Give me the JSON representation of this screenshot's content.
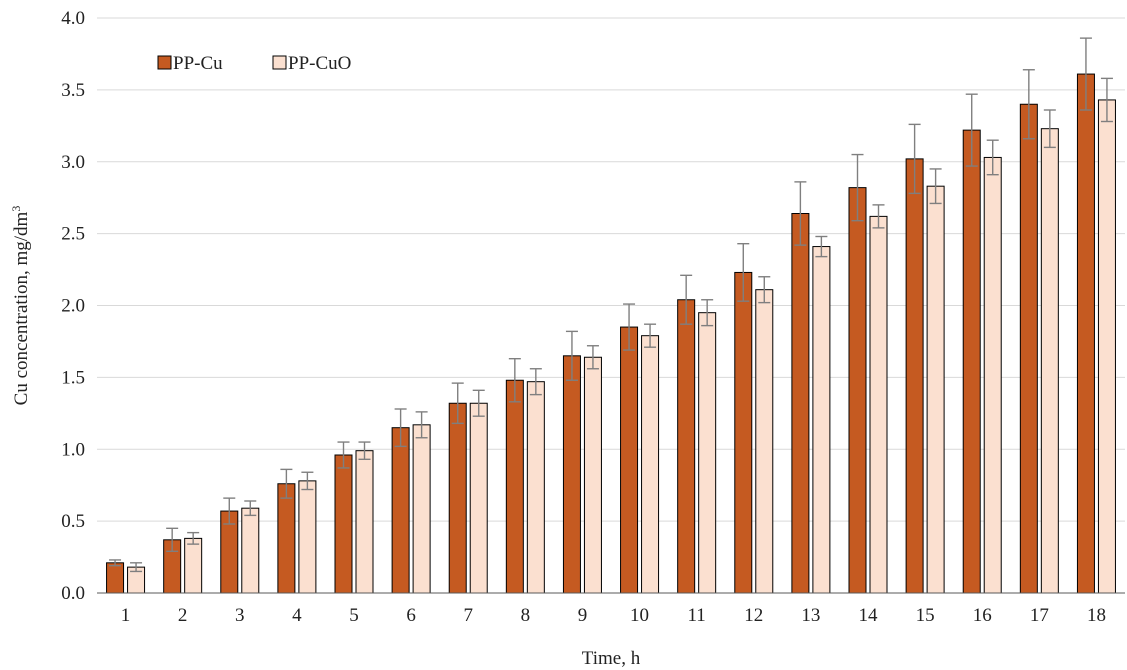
{
  "chart_data": {
    "type": "bar",
    "xlabel": "Time, h",
    "ylabel": "Cu concentration, mg/dm",
    "ylabel_superscript": "3",
    "ylim": [
      0,
      4
    ],
    "yticks": [
      "0.0",
      "0.5",
      "1.0",
      "1.5",
      "2.0",
      "2.5",
      "3.0",
      "3.5",
      "4.0"
    ],
    "ytick_values": [
      0,
      0.5,
      1,
      1.5,
      2,
      2.5,
      3,
      3.5,
      4
    ],
    "grid": true,
    "legend_position": "top-left",
    "categories": [
      "1",
      "2",
      "3",
      "4",
      "5",
      "6",
      "7",
      "8",
      "9",
      "10",
      "11",
      "12",
      "13",
      "14",
      "15",
      "16",
      "17",
      "18"
    ],
    "series": [
      {
        "name": "PP-Cu",
        "color": "#c55a21",
        "values": [
          0.21,
          0.37,
          0.57,
          0.76,
          0.96,
          1.15,
          1.32,
          1.48,
          1.65,
          1.85,
          2.04,
          2.23,
          2.64,
          2.82,
          3.02,
          3.22,
          3.4,
          3.61
        ],
        "errors": [
          0.02,
          0.08,
          0.09,
          0.1,
          0.09,
          0.13,
          0.14,
          0.15,
          0.17,
          0.16,
          0.17,
          0.2,
          0.22,
          0.23,
          0.24,
          0.25,
          0.24,
          0.25
        ]
      },
      {
        "name": "PP-CuO",
        "color": "#fbe0d0",
        "values": [
          0.18,
          0.38,
          0.59,
          0.78,
          0.99,
          1.17,
          1.32,
          1.47,
          1.64,
          1.79,
          1.95,
          2.11,
          2.41,
          2.62,
          2.83,
          3.03,
          3.23,
          3.43
        ],
        "errors": [
          0.03,
          0.04,
          0.05,
          0.06,
          0.06,
          0.09,
          0.09,
          0.09,
          0.08,
          0.08,
          0.09,
          0.09,
          0.07,
          0.08,
          0.12,
          0.12,
          0.13,
          0.15
        ]
      }
    ]
  }
}
